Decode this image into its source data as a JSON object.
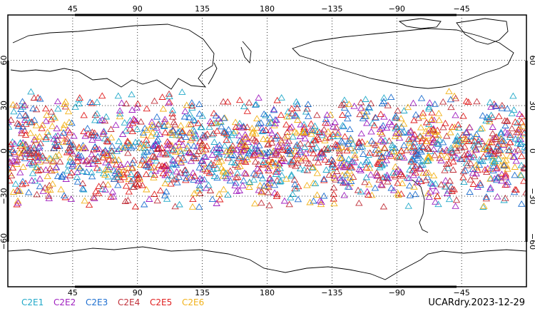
{
  "map": {
    "projection": "cylindrical-equidistant",
    "lon_center": 180,
    "lon_range": [
      0,
      360
    ],
    "lat_range": [
      -90,
      90
    ],
    "lon_tick_labels": [
      "45",
      "90",
      "135",
      "180",
      "−135",
      "−90",
      "−45"
    ],
    "lon_tick_values": [
      45,
      90,
      135,
      180,
      225,
      270,
      315
    ],
    "lat_tick_labels": [
      "60",
      "30",
      "0",
      "−30",
      "−60"
    ],
    "lat_tick_values": [
      60,
      30,
      0,
      -30,
      -60
    ],
    "grid": true,
    "grid_style": "dotted",
    "coastlines": true
  },
  "chart_data": {
    "type": "scatter",
    "marker": "open-triangle",
    "description_lat_band": [
      -40,
      40
    ],
    "series": [
      {
        "name": "C2E1",
        "color": "#22a9c9",
        "lat_band": [
          -40,
          40
        ]
      },
      {
        "name": "C2E2",
        "color": "#a020c0",
        "lat_band": [
          -40,
          40
        ]
      },
      {
        "name": "C2E3",
        "color": "#1e6fd0",
        "lat_band": [
          -40,
          40
        ]
      },
      {
        "name": "C2E4",
        "color": "#c0303a",
        "lat_band": [
          -40,
          40
        ]
      },
      {
        "name": "C2E5",
        "color": "#e01e1e",
        "lat_band": [
          -40,
          40
        ]
      },
      {
        "name": "C2E6",
        "color": "#f2b21a",
        "lat_band": [
          -40,
          40
        ]
      }
    ]
  },
  "legend": {
    "items": [
      {
        "label": "C2E1",
        "color": "#22a9c9"
      },
      {
        "label": "C2E2",
        "color": "#a020c0"
      },
      {
        "label": "C2E3",
        "color": "#1e6fd0"
      },
      {
        "label": "C2E4",
        "color": "#c0303a"
      },
      {
        "label": "C2E5",
        "color": "#e01e1e"
      },
      {
        "label": "C2E6",
        "color": "#f2b21a"
      }
    ]
  },
  "footer": {
    "label": "UCARdry.2023-12-29"
  }
}
